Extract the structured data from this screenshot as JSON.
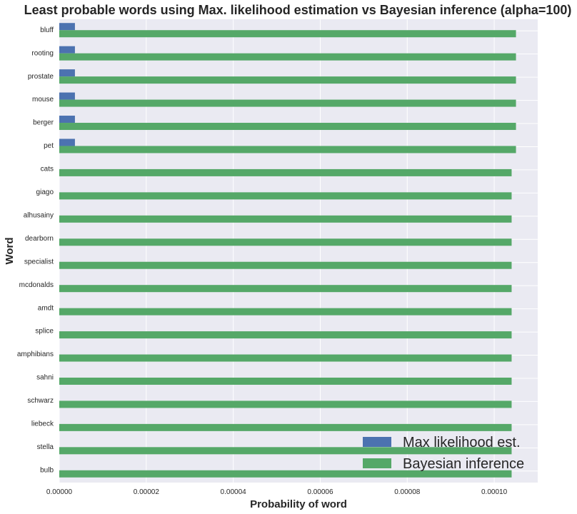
{
  "chart_data": {
    "type": "bar",
    "orientation": "horizontal",
    "title": "Least probable words using Max. likelihood estimation vs Bayesian inference (alpha=100)",
    "xlabel": "Probability of word",
    "ylabel": "Word",
    "categories": [
      "bluff",
      "rooting",
      "prostate",
      "mouse",
      "berger",
      "pet",
      "cats",
      "giago",
      "alhusainy",
      "dearborn",
      "specialist",
      "mcdonalds",
      "amdt",
      "splice",
      "amphibians",
      "sahni",
      "schwarz",
      "liebeck",
      "stella",
      "bulb"
    ],
    "series": [
      {
        "name": "Max likelihood est.",
        "color": "#4c72b0",
        "values": [
          3.6e-06,
          3.6e-06,
          3.6e-06,
          3.6e-06,
          3.6e-06,
          3.6e-06,
          0,
          0,
          0,
          0,
          0,
          0,
          0,
          0,
          0,
          0,
          0,
          0,
          0,
          0
        ]
      },
      {
        "name": "Bayesian inference",
        "color": "#55a868",
        "values": [
          0.000105,
          0.000105,
          0.000105,
          0.000105,
          0.000105,
          0.000105,
          0.000104,
          0.000104,
          0.000104,
          0.000104,
          0.000104,
          0.000104,
          0.000104,
          0.000104,
          0.000104,
          0.000104,
          0.000104,
          0.000104,
          0.000104,
          0.000104
        ]
      }
    ],
    "xlim": [
      0,
      0.00011
    ],
    "xticks": [
      0,
      2e-05,
      4e-05,
      6e-05,
      8e-05,
      0.0001
    ],
    "xtick_labels": [
      "0.00000",
      "0.00002",
      "0.00004",
      "0.00006",
      "0.00008",
      "0.00010"
    ],
    "grid": true,
    "legend_position": "bottom-right",
    "background_color": "#eaeaf2",
    "grid_color": "#ffffff"
  }
}
